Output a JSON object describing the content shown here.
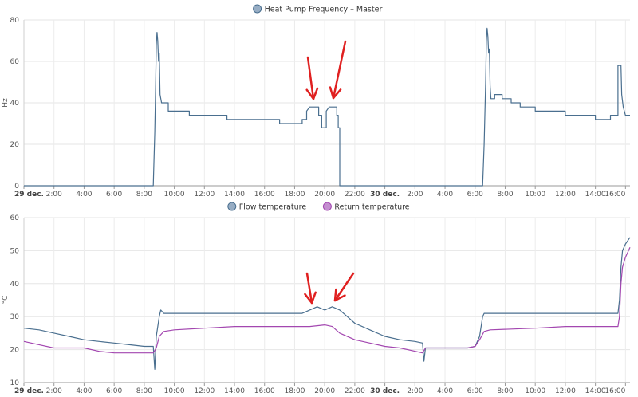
{
  "chart_data": [
    {
      "type": "line",
      "ylabel": "Hz",
      "ylim": [
        0,
        80
      ],
      "yticks": [
        0,
        20,
        40,
        60,
        80
      ],
      "grid": true,
      "legend_position": "top-center",
      "xticks": [
        {
          "label": "29 dec.",
          "h": 0,
          "bold": true
        },
        {
          "label": "2:00",
          "h": 2
        },
        {
          "label": "4:00",
          "h": 4
        },
        {
          "label": "6:00",
          "h": 6
        },
        {
          "label": "8:00",
          "h": 8
        },
        {
          "label": "10:00",
          "h": 10
        },
        {
          "label": "12:00",
          "h": 12
        },
        {
          "label": "14:00",
          "h": 14
        },
        {
          "label": "16:00",
          "h": 16
        },
        {
          "label": "18:00",
          "h": 18
        },
        {
          "label": "20:00",
          "h": 20
        },
        {
          "label": "22:00",
          "h": 22
        },
        {
          "label": "30 dec.",
          "h": 24,
          "bold": true
        },
        {
          "label": "2:00",
          "h": 26
        },
        {
          "label": "4:00",
          "h": 28
        },
        {
          "label": "6:00",
          "h": 30
        },
        {
          "label": "8:00",
          "h": 32
        },
        {
          "label": "10:00",
          "h": 34
        },
        {
          "label": "12:00",
          "h": 36
        },
        {
          "label": "14:00",
          "h": 38
        },
        {
          "label": "16:00",
          "h": 40
        }
      ],
      "series": [
        {
          "name": "Heat Pump Frequency – Master",
          "color": "#4a6f8f",
          "legend_color": "#97adc4",
          "points": [
            [
              0,
              0
            ],
            [
              8.6,
              0
            ],
            [
              8.7,
              26
            ],
            [
              8.75,
              45
            ],
            [
              8.8,
              68
            ],
            [
              8.85,
              74
            ],
            [
              8.9,
              70
            ],
            [
              8.95,
              60
            ],
            [
              9.0,
              64
            ],
            [
              9.05,
              44
            ],
            [
              9.15,
              40
            ],
            [
              9.6,
              40
            ],
            [
              9.6,
              36
            ],
            [
              11.0,
              36
            ],
            [
              11.0,
              34
            ],
            [
              13.5,
              34
            ],
            [
              13.5,
              32
            ],
            [
              17.0,
              32
            ],
            [
              17.0,
              30
            ],
            [
              18.5,
              30
            ],
            [
              18.5,
              32
            ],
            [
              18.8,
              32
            ],
            [
              18.8,
              36
            ],
            [
              19.0,
              38
            ],
            [
              19.6,
              38
            ],
            [
              19.6,
              34
            ],
            [
              19.8,
              34
            ],
            [
              19.8,
              28
            ],
            [
              20.1,
              28
            ],
            [
              20.1,
              36
            ],
            [
              20.3,
              38
            ],
            [
              20.8,
              38
            ],
            [
              20.8,
              34
            ],
            [
              20.9,
              34
            ],
            [
              20.9,
              28
            ],
            [
              21.0,
              28
            ],
            [
              21.0,
              0
            ],
            [
              30.5,
              0
            ],
            [
              30.6,
              20
            ],
            [
              30.7,
              50
            ],
            [
              30.75,
              70
            ],
            [
              30.8,
              76
            ],
            [
              30.85,
              72
            ],
            [
              30.9,
              64
            ],
            [
              30.95,
              66
            ],
            [
              31.0,
              48
            ],
            [
              31.05,
              42
            ],
            [
              31.3,
              42
            ],
            [
              31.3,
              44
            ],
            [
              31.8,
              44
            ],
            [
              31.8,
              42
            ],
            [
              32.4,
              42
            ],
            [
              32.4,
              40
            ],
            [
              33.0,
              40
            ],
            [
              33.0,
              38
            ],
            [
              34.0,
              38
            ],
            [
              34.0,
              36
            ],
            [
              36.0,
              36
            ],
            [
              36.0,
              34
            ],
            [
              38.0,
              34
            ],
            [
              38.0,
              32
            ],
            [
              39.0,
              32
            ],
            [
              39.0,
              34
            ],
            [
              39.5,
              34
            ],
            [
              39.5,
              58
            ],
            [
              39.7,
              58
            ],
            [
              39.75,
              44
            ],
            [
              39.85,
              38
            ],
            [
              40.0,
              34
            ],
            [
              40.3,
              34
            ]
          ]
        }
      ]
    },
    {
      "type": "line",
      "ylabel": "°C",
      "ylim": [
        10,
        60
      ],
      "yticks": [
        10,
        20,
        30,
        40,
        50,
        60
      ],
      "grid": true,
      "legend_position": "top-center",
      "xticks": [
        {
          "label": "29 dec.",
          "h": 0,
          "bold": true
        },
        {
          "label": "2:00",
          "h": 2
        },
        {
          "label": "4:00",
          "h": 4
        },
        {
          "label": "6:00",
          "h": 6
        },
        {
          "label": "8:00",
          "h": 8
        },
        {
          "label": "10:00",
          "h": 10
        },
        {
          "label": "12:00",
          "h": 12
        },
        {
          "label": "14:00",
          "h": 14
        },
        {
          "label": "16:00",
          "h": 16
        },
        {
          "label": "18:00",
          "h": 18
        },
        {
          "label": "20:00",
          "h": 20
        },
        {
          "label": "22:00",
          "h": 22
        },
        {
          "label": "30 dec.",
          "h": 24,
          "bold": true
        },
        {
          "label": "2:00",
          "h": 26
        },
        {
          "label": "4:00",
          "h": 28
        },
        {
          "label": "6:00",
          "h": 30
        },
        {
          "label": "8:00",
          "h": 32
        },
        {
          "label": "10:00",
          "h": 34
        },
        {
          "label": "12:00",
          "h": 36
        },
        {
          "label": "14:00",
          "h": 38
        },
        {
          "label": "16:00",
          "h": 40
        }
      ],
      "series": [
        {
          "name": "Flow temperature",
          "color": "#4a6f8f",
          "legend_color": "#97adc4",
          "points": [
            [
              0,
              26.5
            ],
            [
              1,
              26
            ],
            [
              2,
              25
            ],
            [
              3,
              24
            ],
            [
              4,
              23
            ],
            [
              5,
              22.5
            ],
            [
              6,
              22
            ],
            [
              7,
              21.5
            ],
            [
              8,
              21
            ],
            [
              8.6,
              21
            ],
            [
              8.7,
              14
            ],
            [
              8.8,
              24
            ],
            [
              9.0,
              30
            ],
            [
              9.1,
              32
            ],
            [
              9.3,
              31
            ],
            [
              10,
              31
            ],
            [
              12,
              31
            ],
            [
              14,
              31
            ],
            [
              16,
              31
            ],
            [
              18,
              31
            ],
            [
              18.5,
              31
            ],
            [
              19.0,
              32
            ],
            [
              19.5,
              33
            ],
            [
              20.0,
              32
            ],
            [
              20.5,
              33
            ],
            [
              21.0,
              32
            ],
            [
              21.5,
              30
            ],
            [
              22,
              28
            ],
            [
              23,
              26
            ],
            [
              24,
              24
            ],
            [
              25,
              23
            ],
            [
              26,
              22.5
            ],
            [
              26.5,
              22
            ],
            [
              26.6,
              16.5
            ],
            [
              26.7,
              20.5
            ],
            [
              28,
              20.5
            ],
            [
              29.5,
              20.5
            ],
            [
              30.0,
              21
            ],
            [
              30.3,
              24
            ],
            [
              30.5,
              30
            ],
            [
              30.6,
              31
            ],
            [
              31,
              31
            ],
            [
              34,
              31
            ],
            [
              36,
              31
            ],
            [
              38,
              31
            ],
            [
              39.5,
              31
            ],
            [
              39.6,
              35
            ],
            [
              39.7,
              45
            ],
            [
              39.8,
              50
            ],
            [
              40.0,
              52
            ],
            [
              40.3,
              54
            ]
          ]
        },
        {
          "name": "Return temperature",
          "color": "#a347b0",
          "legend_color": "#c48fd0",
          "points": [
            [
              0,
              22.5
            ],
            [
              1,
              21.5
            ],
            [
              2,
              20.5
            ],
            [
              4,
              20.5
            ],
            [
              5,
              19.5
            ],
            [
              6,
              19
            ],
            [
              7,
              19
            ],
            [
              8,
              19
            ],
            [
              8.6,
              19
            ],
            [
              8.8,
              20.5
            ],
            [
              9.0,
              24
            ],
            [
              9.3,
              25.5
            ],
            [
              10,
              26
            ],
            [
              12,
              26.5
            ],
            [
              14,
              27
            ],
            [
              16,
              27
            ],
            [
              18,
              27
            ],
            [
              19,
              27
            ],
            [
              20,
              27.5
            ],
            [
              20.5,
              27
            ],
            [
              21,
              25
            ],
            [
              22,
              23
            ],
            [
              23,
              22
            ],
            [
              24,
              21
            ],
            [
              25,
              20.5
            ],
            [
              26.5,
              19
            ],
            [
              26.7,
              20.5
            ],
            [
              28,
              20.5
            ],
            [
              29.5,
              20.5
            ],
            [
              30.0,
              21
            ],
            [
              30.3,
              23
            ],
            [
              30.6,
              25.5
            ],
            [
              31,
              26
            ],
            [
              34,
              26.5
            ],
            [
              36,
              27
            ],
            [
              38,
              27
            ],
            [
              39.5,
              27
            ],
            [
              39.6,
              30
            ],
            [
              39.7,
              40
            ],
            [
              39.8,
              45
            ],
            [
              40.0,
              48
            ],
            [
              40.3,
              51
            ]
          ]
        }
      ]
    }
  ]
}
